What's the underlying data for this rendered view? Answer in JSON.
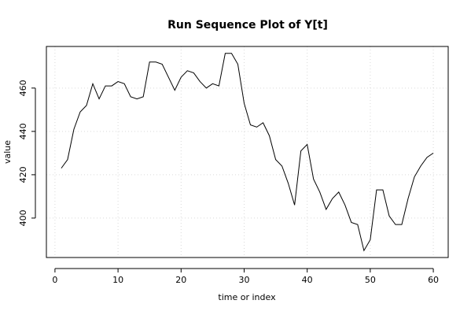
{
  "chart_data": {
    "type": "line",
    "title": "Run Sequence Plot of Y[t]",
    "xlabel": "time or index",
    "ylabel": "value",
    "xlim": [
      -1.36,
      62.36
    ],
    "ylim": [
      381.8,
      479.2
    ],
    "xticks": [
      0,
      10,
      20,
      30,
      40,
      50,
      60
    ],
    "yticks": [
      400,
      420,
      440,
      460
    ],
    "grid": true,
    "x": [
      1,
      2,
      3,
      4,
      5,
      6,
      7,
      8,
      9,
      10,
      11,
      12,
      13,
      14,
      15,
      16,
      17,
      18,
      19,
      20,
      21,
      22,
      23,
      24,
      25,
      26,
      27,
      28,
      29,
      30,
      31,
      32,
      33,
      34,
      35,
      36,
      37,
      38,
      39,
      40,
      41,
      42,
      43,
      44,
      45,
      46,
      47,
      48,
      49,
      50,
      51,
      52,
      53,
      54,
      55,
      56,
      57,
      58,
      59,
      60
    ],
    "values": [
      423,
      427,
      441,
      449,
      452,
      462,
      455,
      461,
      461,
      463,
      462,
      456,
      455,
      456,
      472,
      472,
      471,
      465,
      459,
      465,
      468,
      467,
      463,
      460,
      462,
      461,
      476,
      476,
      471,
      453,
      443,
      442,
      444,
      438,
      427,
      424,
      416,
      406,
      431,
      434,
      418,
      412,
      404,
      409,
      412,
      406,
      398,
      397,
      385,
      390,
      413,
      413,
      401,
      397,
      397,
      409,
      419,
      424,
      428,
      430
    ]
  }
}
